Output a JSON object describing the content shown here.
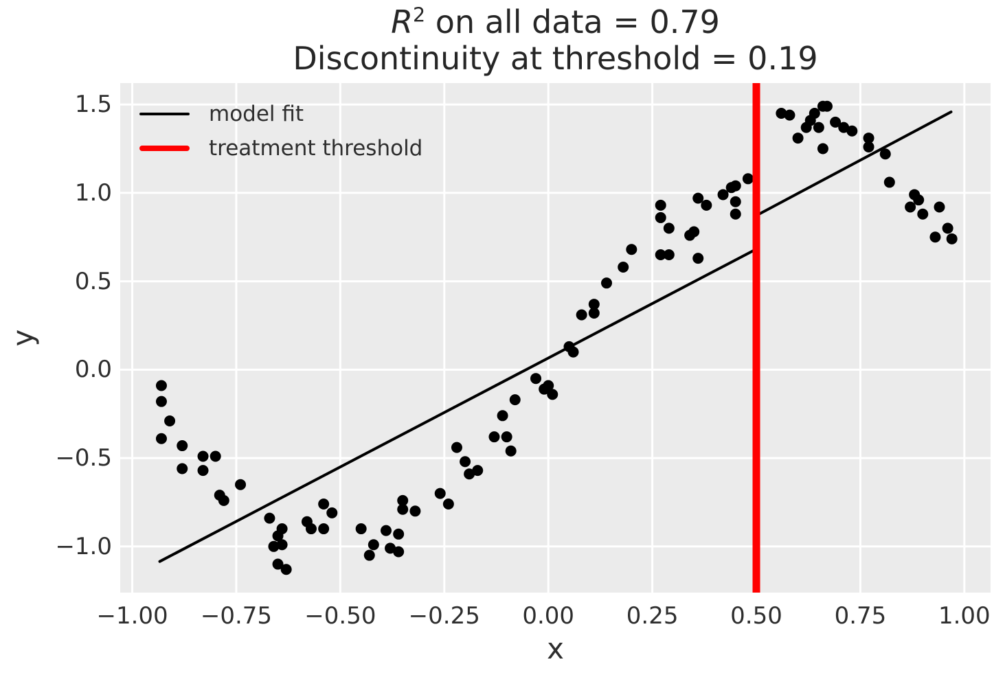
{
  "chart_data": {
    "type": "scatter",
    "title": {
      "math_base": "R",
      "math_sup": "2",
      "line1_rest": " on all data = 0.79",
      "line2": "Discontinuity at threshold = 0.19"
    },
    "xlabel": "x",
    "ylabel": "y",
    "xlim": [
      -1.029,
      1.063
    ],
    "ylim": [
      -1.261,
      1.621
    ],
    "grid": true,
    "x_ticks": [
      {
        "v": -1.0,
        "label": "−1.00"
      },
      {
        "v": -0.75,
        "label": "−0.75"
      },
      {
        "v": -0.5,
        "label": "−0.50"
      },
      {
        "v": -0.25,
        "label": "−0.25"
      },
      {
        "v": 0.0,
        "label": "0.00"
      },
      {
        "v": 0.25,
        "label": "0.25"
      },
      {
        "v": 0.5,
        "label": "0.50"
      },
      {
        "v": 0.75,
        "label": "0.75"
      },
      {
        "v": 1.0,
        "label": "1.00"
      }
    ],
    "y_ticks": [
      {
        "v": -1.0,
        "label": "−1.0"
      },
      {
        "v": -0.5,
        "label": "−0.5"
      },
      {
        "v": 0.0,
        "label": "0.0"
      },
      {
        "v": 0.5,
        "label": "0.5"
      },
      {
        "v": 1.0,
        "label": "1.0"
      },
      {
        "v": 1.5,
        "label": "1.5"
      }
    ],
    "legend": {
      "position": "upper-left",
      "entries": [
        {
          "label": "model fit",
          "color": "#000000",
          "line_width": 4
        },
        {
          "label": "treatment threshold",
          "color": "#ff0000",
          "line_width": 8
        }
      ]
    },
    "threshold_x": 0.5,
    "fit_segments": [
      {
        "x": [
          -0.934,
          0.5
        ],
        "y": [
          -1.085,
          0.682
        ]
      },
      {
        "x": [
          0.5,
          0.968
        ],
        "y": [
          0.872,
          1.458
        ]
      }
    ],
    "points": [
      [
        -0.93,
        -0.09
      ],
      [
        -0.93,
        -0.18
      ],
      [
        -0.91,
        -0.29
      ],
      [
        -0.93,
        -0.39
      ],
      [
        -0.88,
        -0.43
      ],
      [
        -0.83,
        -0.49
      ],
      [
        -0.8,
        -0.49
      ],
      [
        -0.88,
        -0.56
      ],
      [
        -0.83,
        -0.57
      ],
      [
        -0.74,
        -0.65
      ],
      [
        -0.79,
        -0.71
      ],
      [
        -0.78,
        -0.74
      ],
      [
        -0.67,
        -0.84
      ],
      [
        -0.64,
        -0.9
      ],
      [
        -0.65,
        -0.94
      ],
      [
        -0.66,
        -1.0
      ],
      [
        -0.64,
        -0.99
      ],
      [
        -0.58,
        -0.86
      ],
      [
        -0.57,
        -0.9
      ],
      [
        -0.54,
        -0.9
      ],
      [
        -0.54,
        -0.76
      ],
      [
        -0.52,
        -0.81
      ],
      [
        -0.65,
        -1.1
      ],
      [
        -0.63,
        -1.13
      ],
      [
        -0.45,
        -0.9
      ],
      [
        -0.42,
        -0.99
      ],
      [
        -0.43,
        -1.05
      ],
      [
        -0.39,
        -0.91
      ],
      [
        -0.36,
        -0.93
      ],
      [
        -0.38,
        -1.01
      ],
      [
        -0.36,
        -1.03
      ],
      [
        -0.35,
        -0.74
      ],
      [
        -0.35,
        -0.79
      ],
      [
        -0.32,
        -0.8
      ],
      [
        -0.26,
        -0.7
      ],
      [
        -0.24,
        -0.76
      ],
      [
        -0.22,
        -0.44
      ],
      [
        -0.2,
        -0.52
      ],
      [
        -0.19,
        -0.59
      ],
      [
        -0.17,
        -0.57
      ],
      [
        -0.13,
        -0.38
      ],
      [
        -0.1,
        -0.38
      ],
      [
        -0.09,
        -0.46
      ],
      [
        -0.11,
        -0.26
      ],
      [
        -0.08,
        -0.17
      ],
      [
        -0.03,
        -0.05
      ],
      [
        -0.01,
        -0.11
      ],
      [
        0.0,
        -0.09
      ],
      [
        0.01,
        -0.14
      ],
      [
        0.05,
        0.13
      ],
      [
        0.06,
        0.1
      ],
      [
        0.08,
        0.31
      ],
      [
        0.11,
        0.37
      ],
      [
        0.11,
        0.32
      ],
      [
        0.14,
        0.49
      ],
      [
        0.18,
        0.58
      ],
      [
        0.2,
        0.68
      ],
      [
        0.27,
        0.93
      ],
      [
        0.27,
        0.86
      ],
      [
        0.29,
        0.8
      ],
      [
        0.34,
        0.76
      ],
      [
        0.35,
        0.78
      ],
      [
        0.36,
        0.97
      ],
      [
        0.38,
        0.93
      ],
      [
        0.42,
        0.99
      ],
      [
        0.44,
        1.03
      ],
      [
        0.45,
        1.04
      ],
      [
        0.45,
        0.95
      ],
      [
        0.45,
        0.88
      ],
      [
        0.48,
        1.08
      ],
      [
        0.27,
        0.65
      ],
      [
        0.29,
        0.65
      ],
      [
        0.36,
        0.63
      ],
      [
        0.56,
        1.45
      ],
      [
        0.58,
        1.44
      ],
      [
        0.63,
        1.41
      ],
      [
        0.64,
        1.45
      ],
      [
        0.66,
        1.49
      ],
      [
        0.67,
        1.49
      ],
      [
        0.62,
        1.37
      ],
      [
        0.65,
        1.37
      ],
      [
        0.6,
        1.31
      ],
      [
        0.66,
        1.25
      ],
      [
        0.69,
        1.4
      ],
      [
        0.71,
        1.37
      ],
      [
        0.73,
        1.35
      ],
      [
        0.77,
        1.31
      ],
      [
        0.77,
        1.26
      ],
      [
        0.81,
        1.22
      ],
      [
        0.82,
        1.06
      ],
      [
        0.88,
        0.99
      ],
      [
        0.89,
        0.96
      ],
      [
        0.87,
        0.92
      ],
      [
        0.9,
        0.88
      ],
      [
        0.94,
        0.92
      ],
      [
        0.96,
        0.8
      ],
      [
        0.93,
        0.75
      ],
      [
        0.97,
        0.74
      ]
    ],
    "colors": {
      "figure_bg": "#ffffff",
      "plot_bg": "#ebebeb",
      "grid": "#ffffff",
      "marker": "#000000",
      "fit_line": "#000000",
      "threshold": "#ff0000",
      "tick_text": "#2e2e2e",
      "title_text": "#262626"
    },
    "marker_radius_px": 8
  }
}
